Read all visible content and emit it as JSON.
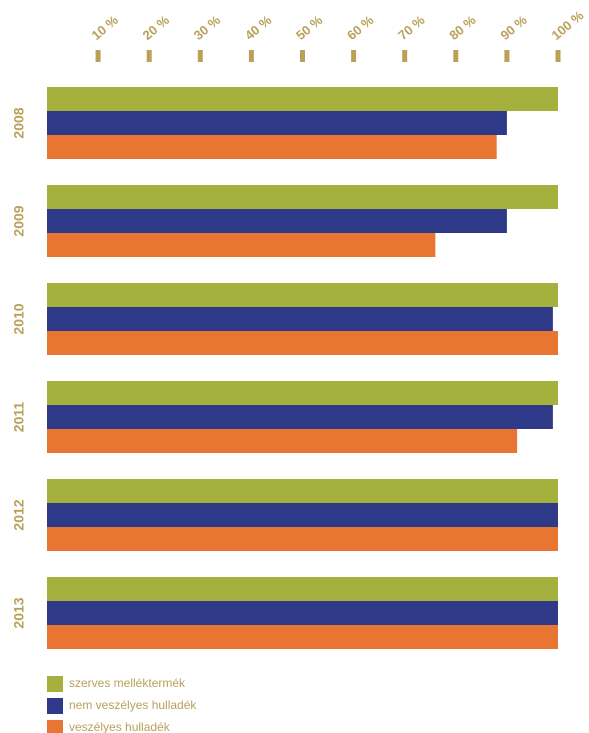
{
  "chart_data": {
    "type": "bar",
    "orientation": "horizontal",
    "categories": [
      "2008",
      "2009",
      "2010",
      "2011",
      "2012",
      "2013"
    ],
    "series": [
      {
        "name": "szerves melléktermék",
        "color": "#a5b03d",
        "values": [
          100,
          100,
          100,
          100,
          100,
          100
        ]
      },
      {
        "name": "nem veszélyes hulladék",
        "color": "#2e3a87",
        "values": [
          90,
          90,
          99,
          99,
          100,
          100
        ]
      },
      {
        "name": "veszélyes hulladék",
        "color": "#e87532",
        "values": [
          88,
          76,
          100,
          92,
          100,
          100
        ]
      }
    ],
    "xlim": [
      0,
      100
    ],
    "xticks": [
      {
        "value": 10,
        "label": "10 %"
      },
      {
        "value": 20,
        "label": "20 %"
      },
      {
        "value": 30,
        "label": "30 %"
      },
      {
        "value": 40,
        "label": "40 %"
      },
      {
        "value": 50,
        "label": "50 %"
      },
      {
        "value": 60,
        "label": "60 %"
      },
      {
        "value": 70,
        "label": "70 %"
      },
      {
        "value": 80,
        "label": "80 %"
      },
      {
        "value": 90,
        "label": "90 %"
      },
      {
        "value": 100,
        "label": "100 %"
      }
    ],
    "tick_color": "#b9a15a",
    "legend": "bottom-left"
  }
}
